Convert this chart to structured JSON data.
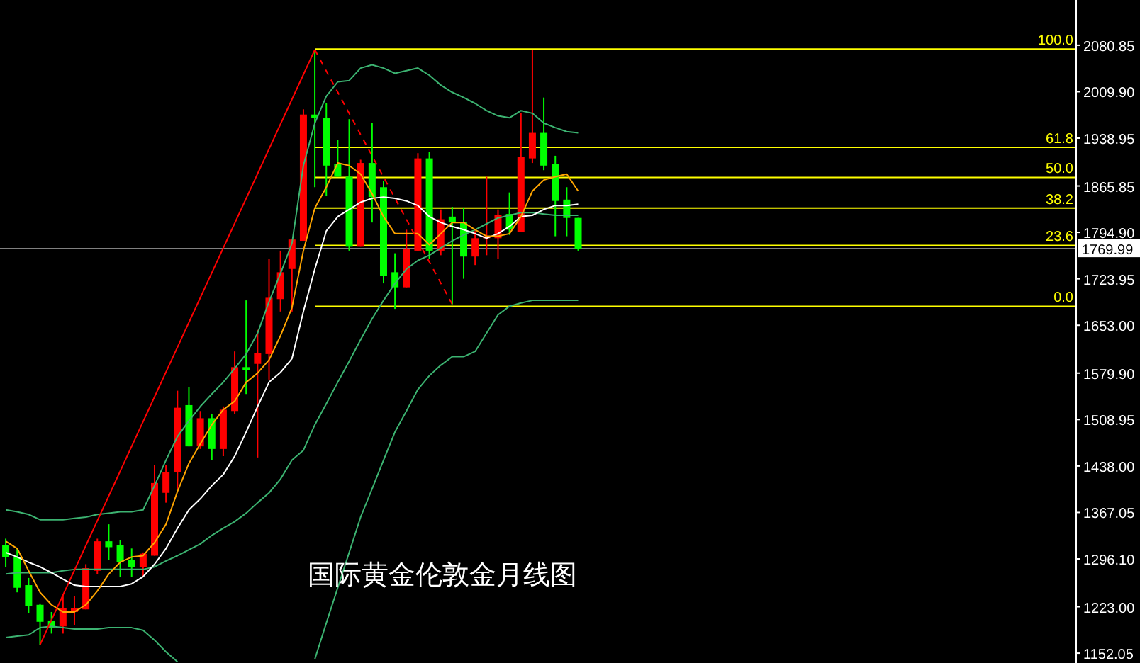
{
  "chart_data": {
    "type": "candlestick",
    "title": "国际黄金伦敦金月线图",
    "tick_labels": "y",
    "categories": [
      null,
      null,
      null,
      null,
      null,
      null,
      null,
      null,
      null,
      null,
      null,
      null,
      null,
      null,
      null,
      null,
      null,
      null,
      null,
      null,
      null,
      null,
      null,
      null,
      null,
      null,
      null,
      null,
      null,
      null,
      null,
      null,
      null,
      null,
      null,
      null,
      null,
      null,
      null,
      null,
      null,
      null,
      null,
      null,
      null,
      null,
      null,
      null,
      null,
      null,
      null,
      null,
      null,
      null,
      null,
      null,
      null,
      null,
      null,
      null,
      null,
      null,
      null,
      null,
      null,
      null,
      null,
      null,
      null,
      null,
      null,
      null,
      null,
      null,
      null,
      null,
      null,
      null,
      null,
      null,
      null,
      null,
      null,
      null,
      null,
      null,
      null,
      null,
      null,
      null,
      null,
      null,
      null,
      null
    ],
    "ohlc": [
      [
        1317,
        1327,
        1284,
        1299
      ],
      [
        1299,
        1312,
        1245,
        1252
      ],
      [
        1256,
        1267,
        1213,
        1224
      ],
      [
        1226,
        1228,
        1165,
        1200
      ],
      [
        1202,
        1215,
        1182,
        1191
      ],
      [
        1193,
        1241,
        1182,
        1221
      ],
      [
        1215,
        1239,
        1195,
        1221
      ],
      [
        1219,
        1288,
        1219,
        1282
      ],
      [
        1278,
        1327,
        1273,
        1323
      ],
      [
        1323,
        1349,
        1295,
        1314
      ],
      [
        1317,
        1325,
        1269,
        1291
      ],
      [
        1295,
        1312,
        1269,
        1284
      ],
      [
        1284,
        1306,
        1269,
        1304
      ],
      [
        1301,
        1440,
        1301,
        1412
      ],
      [
        1397,
        1440,
        1382,
        1429
      ],
      [
        1429,
        1553,
        1403,
        1527
      ],
      [
        1531,
        1559,
        1468,
        1468
      ],
      [
        1468,
        1522,
        1464,
        1511
      ],
      [
        1511,
        1518,
        1447,
        1464
      ],
      [
        1464,
        1529,
        1453,
        1524
      ],
      [
        1522,
        1613,
        1518,
        1589
      ],
      [
        1589,
        1691,
        1548,
        1585
      ],
      [
        1594,
        1646,
        1451,
        1611
      ],
      [
        1609,
        1754,
        1570,
        1695
      ],
      [
        1693,
        1767,
        1674,
        1734
      ],
      [
        1739,
        1784,
        1674,
        1784
      ],
      [
        1782,
        1983,
        1782,
        1975
      ],
      [
        1975,
        2074,
        1864,
        1970
      ],
      [
        1970,
        1992,
        1851,
        1897
      ],
      [
        1899,
        1936,
        1880,
        1880
      ],
      [
        1880,
        1968,
        1767,
        1773
      ],
      [
        1773,
        1906,
        1773,
        1901
      ],
      [
        1901,
        1962,
        1810,
        1849
      ],
      [
        1864,
        1873,
        1717,
        1728
      ],
      [
        1734,
        1763,
        1678,
        1711
      ],
      [
        1711,
        1799,
        1711,
        1769
      ],
      [
        1767,
        1916,
        1767,
        1908
      ],
      [
        1908,
        1918,
        1754,
        1767
      ],
      [
        1767,
        1830,
        1760,
        1815
      ],
      [
        1819,
        1834,
        1685,
        1810
      ],
      [
        1810,
        1832,
        1724,
        1758
      ],
      [
        1758,
        1797,
        1745,
        1786
      ],
      [
        1786,
        1880,
        1760,
        1789
      ],
      [
        1786,
        1830,
        1754,
        1821
      ],
      [
        1823,
        1856,
        1791,
        1799
      ],
      [
        1795,
        1977,
        1795,
        1910
      ],
      [
        1908,
        2074,
        1901,
        1947
      ],
      [
        1947,
        2001,
        1890,
        1897
      ],
      [
        1899,
        1912,
        1789,
        1843
      ],
      [
        1845,
        1864,
        1789,
        1817
      ],
      [
        1817,
        1817,
        1767,
        1770
      ],
      null,
      null,
      null,
      null,
      null,
      null,
      null,
      null,
      null,
      null,
      null,
      null,
      null,
      null,
      null,
      null,
      null,
      null,
      null,
      null,
      null,
      null,
      null,
      null,
      null,
      null,
      null,
      null,
      null,
      null,
      null,
      null,
      null,
      null,
      null,
      null,
      null,
      null,
      null,
      null,
      null,
      null,
      null
    ],
    "colors": [
      "#00ff00",
      "#00ff00",
      "#00ff00",
      "#00ff00",
      "#00ff00",
      "#ff0000",
      "#ff0000",
      "#ff0000",
      "#ff0000",
      "#00ff00",
      "#00ff00",
      "#00ff00",
      "#ff0000",
      "#ff0000",
      "#ff0000",
      "#ff0000",
      "#00ff00",
      "#ff0000",
      "#00ff00",
      "#ff0000",
      "#ff0000",
      "#00ff00",
      "#ff0000",
      "#ff0000",
      "#ff0000",
      "#ff0000",
      "#ff0000",
      "#00ff00",
      "#00ff00",
      "#00ff00",
      "#00ff00",
      "#ff0000",
      "#00ff00",
      "#00ff00",
      "#00ff00",
      "#ff0000",
      "#ff0000",
      "#00ff00",
      "#ff0000",
      "#00ff00",
      "#00ff00",
      "#ff0000",
      "#ff0000",
      "#ff0000",
      "#00ff00",
      "#ff0000",
      "#ff0000",
      "#00ff00",
      "#00ff00",
      "#00ff00",
      "#00ff00",
      null,
      null,
      null,
      null,
      null,
      null,
      null,
      null,
      null,
      null,
      null,
      null,
      null,
      null,
      null,
      null,
      null,
      null,
      null,
      null,
      null,
      null,
      null,
      null,
      null,
      null,
      null,
      null,
      null,
      null,
      null,
      null,
      null,
      null,
      null,
      null,
      null,
      null,
      null,
      null,
      null,
      null,
      null
    ],
    "series": [
      {
        "type": "line",
        "color": "#3cb371",
        "values": [
          1371,
          1368,
          1364,
          1356,
          1356,
          1356,
          1358,
          1360,
          1364,
          1366,
          1368,
          1368,
          1371,
          1408,
          1447,
          1483,
          1507,
          1529,
          1548,
          1566,
          1587,
          1609,
          1641,
          1689,
          1732,
          1778,
          1897,
          1962,
          2003,
          2025,
          2027,
          2046,
          2051,
          2046,
          2038,
          2042,
          2046,
          2035,
          2020,
          2009,
          2001,
          1992,
          1981,
          1973,
          1970,
          1981,
          1977,
          1962,
          1955,
          1949,
          1947,
          null,
          null,
          null,
          null,
          null,
          null,
          null,
          null,
          null,
          null,
          null,
          null,
          null,
          null,
          null,
          null,
          null,
          null,
          null,
          null,
          null,
          null,
          null,
          null,
          null,
          null,
          null,
          null,
          null,
          null,
          null,
          null,
          null,
          null,
          null,
          null,
          null,
          null,
          null,
          null,
          null,
          null,
          null
        ]
      },
      {
        "type": "line",
        "color": "#3cb371",
        "values": [
          1273,
          1275,
          1275,
          1275,
          1275,
          1278,
          1280,
          1280,
          1280,
          1280,
          1280,
          1280,
          1280,
          1284,
          1293,
          1301,
          1310,
          1319,
          1332,
          1343,
          1353,
          1366,
          1382,
          1397,
          1418,
          1447,
          1462,
          1501,
          1533,
          1566,
          1598,
          1631,
          1663,
          1691,
          1717,
          1739,
          1752,
          1760,
          1771,
          1782,
          1791,
          1799,
          1808,
          1817,
          1821,
          1825,
          1825,
          1823,
          1821,
          1821,
          1821,
          null,
          null,
          null,
          null,
          null,
          null,
          null,
          null,
          null,
          null,
          null,
          null,
          null,
          null,
          null,
          null,
          null,
          null,
          null,
          null,
          null,
          null,
          null,
          null,
          null,
          null,
          null,
          null,
          null,
          null,
          null,
          null,
          null,
          null,
          null,
          null,
          null,
          null,
          null,
          null,
          null,
          null,
          null
        ]
      },
      {
        "type": "line",
        "color": "#3cb371",
        "values": [
          1176,
          1178,
          1180,
          1191,
          1193,
          1191,
          1189,
          1189,
          1189,
          1191,
          1191,
          1191,
          1187,
          1172,
          1154,
          1139,
          null,
          null,
          null,
          null,
          null,
          null,
          null,
          null,
          null,
          null,
          null,
          1143,
          1198,
          1252,
          1306,
          1360,
          1403,
          1447,
          1490,
          1522,
          1555,
          1576,
          1592,
          1605,
          1605,
          1613,
          1641,
          1669,
          1682,
          1687,
          1691,
          1691,
          1691,
          1691,
          1691,
          null,
          null,
          null,
          null,
          null,
          null,
          null,
          null,
          null,
          null,
          null,
          null,
          null,
          null,
          null,
          null,
          null,
          null,
          null,
          null,
          null,
          null,
          null,
          null,
          null,
          null,
          null,
          null,
          null,
          null,
          null,
          null,
          null,
          null,
          null,
          null,
          null,
          null,
          null,
          null,
          null,
          null,
          null
        ]
      },
      {
        "type": "line",
        "color": "#ffffff",
        "values": [
          1306,
          1299,
          1291,
          1284,
          1275,
          1265,
          1256,
          1254,
          1254,
          1254,
          1254,
          1258,
          1269,
          1288,
          1312,
          1343,
          1371,
          1388,
          1408,
          1425,
          1453,
          1490,
          1529,
          1566,
          1581,
          1602,
          1674,
          1739,
          1797,
          1819,
          1830,
          1841,
          1847,
          1849,
          1847,
          1843,
          1836,
          1819,
          1810,
          1804,
          1799,
          1793,
          1786,
          1793,
          1804,
          1819,
          1821,
          1830,
          1836,
          1836,
          1838,
          null,
          null,
          null,
          null,
          null,
          null,
          null,
          null,
          null,
          null,
          null,
          null,
          null,
          null,
          null,
          null,
          null,
          null,
          null,
          null,
          null,
          null,
          null,
          null,
          null,
          null,
          null,
          null,
          null,
          null,
          null,
          null,
          null,
          null,
          null,
          null,
          null,
          null,
          null,
          null,
          null,
          null,
          null
        ]
      },
      {
        "type": "line",
        "color": "#ffa500",
        "values": [
          1323,
          1312,
          1278,
          1245,
          1226,
          1215,
          1215,
          1226,
          1247,
          1273,
          1291,
          1299,
          1301,
          1321,
          1349,
          1399,
          1442,
          1472,
          1501,
          1524,
          1537,
          1566,
          1580,
          1600,
          1637,
          1680,
          1767,
          1832,
          1864,
          1901,
          1897,
          1884,
          1854,
          1819,
          1793,
          1793,
          1793,
          1776,
          1793,
          1810,
          1810,
          1799,
          1789,
          1789,
          1793,
          1819,
          1858,
          1875,
          1880,
          1884,
          1858,
          null,
          null,
          null,
          null,
          null,
          null,
          null,
          null,
          null,
          null,
          null,
          null,
          null,
          null,
          null,
          null,
          null,
          null,
          null,
          null,
          null,
          null,
          null,
          null,
          null,
          null,
          null,
          null,
          null,
          null,
          null,
          null,
          null,
          null,
          null,
          null,
          null,
          null,
          null,
          null,
          null,
          null,
          null
        ]
      },
      {
        "type": "line",
        "color": "#ff0000",
        "line_style": "solid",
        "values": [
          null,
          null,
          null,
          1165,
          null,
          null,
          null,
          null,
          null,
          null,
          null,
          null,
          null,
          null,
          null,
          null,
          null,
          null,
          null,
          null,
          null,
          null,
          null,
          null,
          null,
          null,
          null,
          2074,
          null,
          null,
          null,
          null,
          null,
          null,
          null,
          null,
          null,
          null,
          null,
          null,
          null,
          null,
          null,
          null,
          null,
          null,
          null,
          null,
          null,
          null,
          null,
          null,
          null,
          null,
          null,
          null,
          null,
          null,
          null,
          null,
          null,
          null,
          null,
          null,
          null,
          null,
          null,
          null,
          null,
          null,
          null,
          null,
          null,
          null,
          null,
          null,
          null,
          null,
          null,
          null,
          null,
          null,
          null,
          null,
          null,
          null,
          null,
          null,
          null,
          null,
          null,
          null,
          null,
          null
        ]
      },
      {
        "type": "line",
        "color": "#ff0000",
        "line_style": "dashed",
        "values": [
          null,
          null,
          null,
          null,
          null,
          null,
          null,
          null,
          null,
          null,
          null,
          null,
          null,
          null,
          null,
          null,
          null,
          null,
          null,
          null,
          null,
          null,
          null,
          null,
          null,
          null,
          null,
          2074,
          null,
          null,
          null,
          null,
          null,
          null,
          null,
          null,
          null,
          null,
          null,
          1685,
          null,
          null,
          null,
          null,
          null,
          null,
          null,
          null,
          null,
          null,
          null,
          null,
          null,
          null,
          null,
          null,
          null,
          null,
          null,
          null,
          null,
          null,
          null,
          null,
          null,
          null,
          null,
          null,
          null,
          null,
          null,
          null,
          null,
          null,
          null,
          null,
          null,
          null,
          null,
          null,
          null,
          null,
          null,
          null,
          null,
          null,
          null,
          null,
          null,
          null,
          null,
          null,
          null,
          null
        ]
      }
    ],
    "ylim": [
      1137,
      2150
    ],
    "yticks": [
      2080.85,
      {
        "value": 2009.9,
        "label": "2009.90"
      },
      1938.95,
      1865.85,
      {
        "value": 1794.9,
        "label": "1794.90"
      },
      1723.95,
      {
        "value": 1653,
        "label": "1653.00"
      },
      {
        "value": 1579.9,
        "label": "1579.90"
      },
      1508.95,
      {
        "value": 1438,
        "label": "1438.00"
      },
      1367.05,
      {
        "value": 1296.1,
        "label": "1296.10"
      },
      {
        "value": 1223,
        "label": "1223.00"
      },
      1152.05
    ],
    "ref_lines": [
      {
        "axis": "y",
        "value": 1769.99,
        "label": "1769.99",
        "color": "#808080"
      },
      {
        "axis": "y",
        "value": 2075,
        "color": "#ffff00"
      },
      {
        "axis": "y",
        "value": 1925,
        "color": "#ffff00"
      },
      {
        "axis": "y",
        "value": 1879,
        "color": "#ffff00"
      },
      {
        "axis": "y",
        "value": 1832,
        "color": "#ffff00"
      },
      {
        "axis": "y",
        "value": 1775,
        "color": "#ffff00"
      },
      {
        "axis": "y",
        "value": 1682,
        "color": "#ffff00"
      }
    ],
    "annotations": [
      {
        "text": "100.0",
        "y": 2075
      },
      {
        "text": "61.8",
        "y": 1925
      },
      {
        "text": "50.0",
        "y": 1879
      },
      {
        "text": "38.2",
        "y": 1832
      },
      {
        "text": "23.6",
        "y": 1775
      },
      {
        "text": "0.0",
        "y": 1682
      }
    ]
  }
}
